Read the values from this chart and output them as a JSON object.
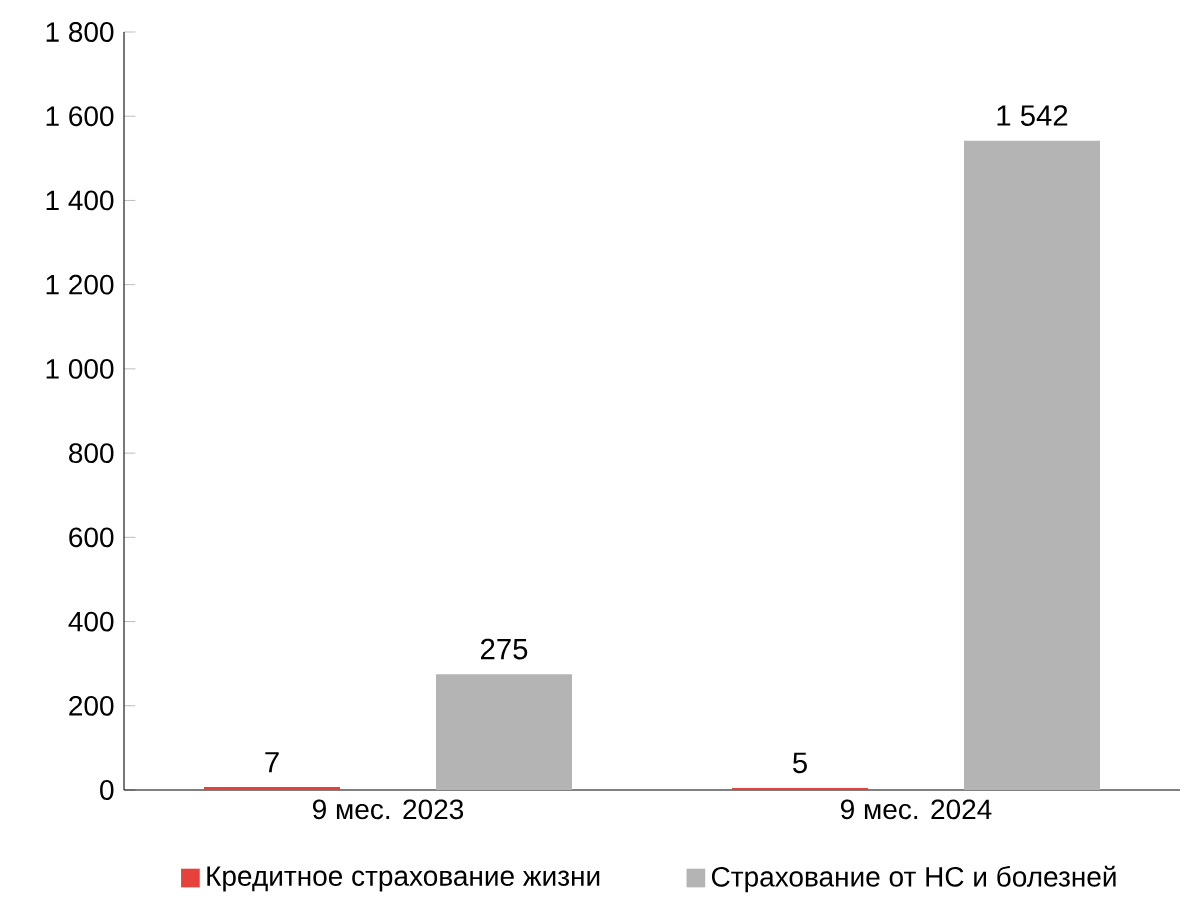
{
  "chart_data": {
    "type": "bar",
    "categories": [
      "9 мес. 2023",
      "9 мес. 2024"
    ],
    "series": [
      {
        "name": "Кредитное страхование жизни",
        "color": "#e8413c",
        "values": [
          7,
          5
        ],
        "value_labels": [
          "7",
          "5"
        ]
      },
      {
        "name": "Страхование от НС и болезней",
        "color": "#b4b4b4",
        "values": [
          275,
          1542
        ],
        "value_labels": [
          "275",
          "1 542"
        ]
      }
    ],
    "ylim": [
      0,
      1800
    ],
    "yticks": [
      0,
      200,
      400,
      600,
      800,
      {
        "value": 1000,
        "label": "1 000"
      },
      {
        "value": 1200,
        "label": "1 200"
      },
      {
        "value": 1400,
        "label": "1 400"
      },
      {
        "value": 1600,
        "label": "1 600"
      },
      {
        "value": 1800,
        "label": "1 800"
      }
    ],
    "legend": "bottom"
  }
}
